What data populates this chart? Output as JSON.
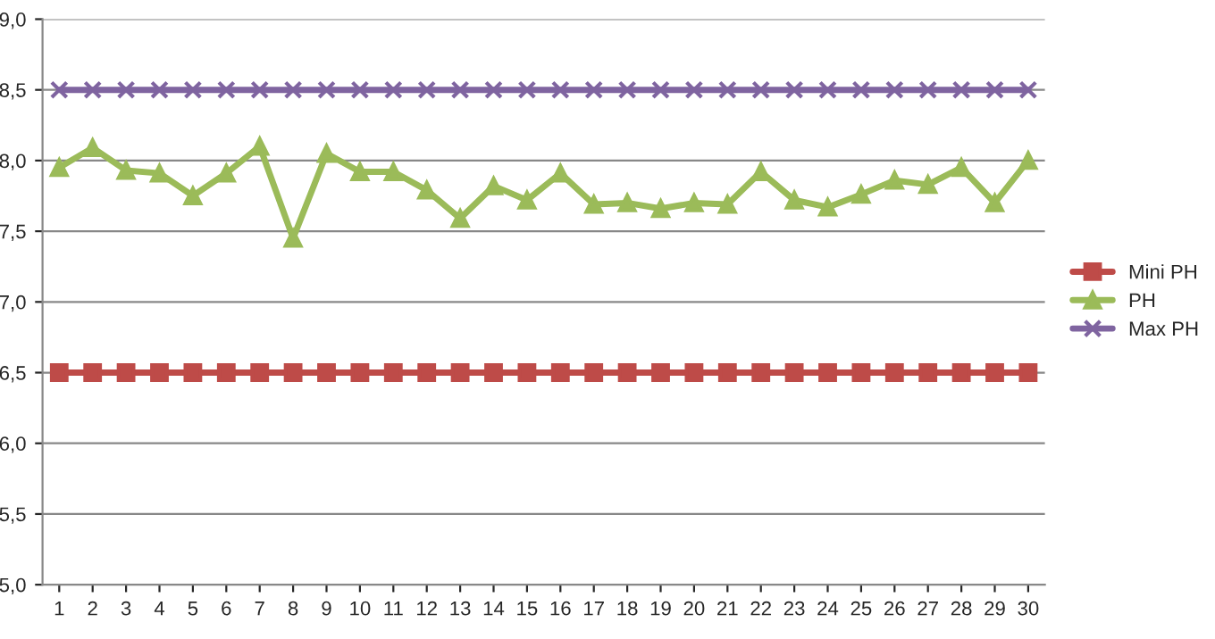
{
  "chart_data": {
    "type": "line",
    "categories": [
      "1",
      "2",
      "3",
      "4",
      "5",
      "6",
      "7",
      "8",
      "9",
      "10",
      "11",
      "12",
      "13",
      "14",
      "15",
      "16",
      "17",
      "18",
      "19",
      "20",
      "21",
      "22",
      "23",
      "24",
      "25",
      "26",
      "27",
      "28",
      "29",
      "30"
    ],
    "series": [
      {
        "name": "Mini PH",
        "color": "#be4b48",
        "marker": "square",
        "values": [
          6.5,
          6.5,
          6.5,
          6.5,
          6.5,
          6.5,
          6.5,
          6.5,
          6.5,
          6.5,
          6.5,
          6.5,
          6.5,
          6.5,
          6.5,
          6.5,
          6.5,
          6.5,
          6.5,
          6.5,
          6.5,
          6.5,
          6.5,
          6.5,
          6.5,
          6.5,
          6.5,
          6.5,
          6.5,
          6.5
        ]
      },
      {
        "name": "PH",
        "color": "#9bbb59",
        "marker": "triangle",
        "values": [
          7.95,
          8.09,
          7.93,
          7.91,
          7.75,
          7.91,
          8.1,
          7.45,
          8.05,
          7.92,
          7.92,
          7.79,
          7.59,
          7.82,
          7.72,
          7.91,
          7.69,
          7.7,
          7.66,
          7.7,
          7.69,
          7.92,
          7.72,
          7.67,
          7.76,
          7.86,
          7.83,
          7.95,
          7.7,
          8.0
        ]
      },
      {
        "name": "Max PH",
        "color": "#7f64a0",
        "marker": "cross",
        "values": [
          8.5,
          8.5,
          8.5,
          8.5,
          8.5,
          8.5,
          8.5,
          8.5,
          8.5,
          8.5,
          8.5,
          8.5,
          8.5,
          8.5,
          8.5,
          8.5,
          8.5,
          8.5,
          8.5,
          8.5,
          8.5,
          8.5,
          8.5,
          8.5,
          8.5,
          8.5,
          8.5,
          8.5,
          8.5,
          8.5
        ]
      }
    ],
    "ylim": [
      5.0,
      9.0
    ],
    "yticks": [
      {
        "value": 5.0,
        "label": "5,0"
      },
      {
        "value": 5.5,
        "label": "5,5"
      },
      {
        "value": 6.0,
        "label": "6,0"
      },
      {
        "value": 6.5,
        "label": "6,5"
      },
      {
        "value": 7.0,
        "label": "7,0"
      },
      {
        "value": 7.5,
        "label": "7,5"
      },
      {
        "value": 8.0,
        "label": "8,0"
      },
      {
        "value": 8.5,
        "label": "8,5"
      },
      {
        "value": 9.0,
        "label": "9,0"
      }
    ],
    "grid": "y",
    "legend": "right"
  }
}
